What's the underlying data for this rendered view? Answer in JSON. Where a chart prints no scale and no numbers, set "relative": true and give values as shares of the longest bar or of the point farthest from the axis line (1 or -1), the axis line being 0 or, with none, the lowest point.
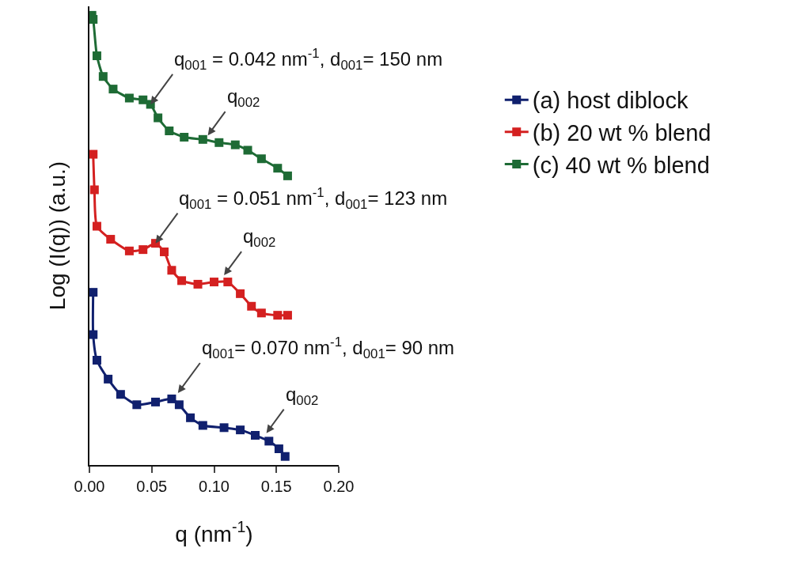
{
  "chart_data": {
    "type": "line",
    "relative": true,
    "xlabel": "q (nm$^{-1}$)",
    "ylabel": "Log (I(q)) (a.u.)",
    "xlim": [
      0,
      0.2
    ],
    "xticks": [
      {
        "value": 0,
        "label": "0.00"
      },
      {
        "value": 0.05,
        "label": "0.05"
      },
      {
        "value": 0.1,
        "label": "0.10"
      },
      {
        "value": 0.15,
        "label": "0.15"
      },
      {
        "value": 0.2,
        "label": "0.20"
      }
    ],
    "marker": "square",
    "line_style": "solid",
    "legend": "right",
    "grid": false,
    "series": [
      {
        "name": "(a) host diblock",
        "color": "#10206e",
        "x": [
          0.003,
          0.003,
          0.006,
          0.015,
          0.025,
          0.038,
          0.053,
          0.066,
          0.072,
          0.081,
          0.091,
          0.108,
          0.121,
          0.133,
          0.144,
          0.152,
          0.157
        ],
        "values": [
          0.384,
          0.29,
          0.233,
          0.191,
          0.157,
          0.134,
          0.14,
          0.147,
          0.134,
          0.105,
          0.088,
          0.083,
          0.078,
          0.066,
          0.053,
          0.036,
          0.019
        ]
      },
      {
        "name": "(b) 20 wt % blend",
        "color": "#d42020",
        "x": [
          0.003,
          0.004,
          0.006,
          0.017,
          0.032,
          0.043,
          0.053,
          0.06,
          0.066,
          0.074,
          0.087,
          0.1,
          0.111,
          0.121,
          0.13,
          0.138,
          0.151,
          0.159
        ],
        "values": [
          0.691,
          0.612,
          0.531,
          0.502,
          0.476,
          0.479,
          0.493,
          0.474,
          0.433,
          0.41,
          0.402,
          0.407,
          0.407,
          0.381,
          0.353,
          0.338,
          0.333,
          0.333
        ]
      },
      {
        "name": "(c) 40 wt % blend",
        "color": "#1e6b35",
        "x": [
          0.002,
          0.003,
          0.006,
          0.011,
          0.019,
          0.032,
          0.043,
          0.049,
          0.055,
          0.064,
          0.076,
          0.091,
          0.104,
          0.117,
          0.127,
          0.138,
          0.151,
          0.159
        ],
        "values": [
          1,
          0.991,
          0.91,
          0.864,
          0.836,
          0.816,
          0.812,
          0.802,
          0.772,
          0.743,
          0.729,
          0.724,
          0.717,
          0.712,
          0.7,
          0.681,
          0.66,
          0.643
        ]
      }
    ],
    "annotations": [
      {
        "text": "q$_{001}$ = 0.042 nm$^{-1}$, d$_{001}$= 150 nm",
        "x": 0.049,
        "y": 0.802
      },
      {
        "text": "q$_{002}$",
        "x": 0.095,
        "y": 0.733
      },
      {
        "text": "q$_{001}$ = 0.051 nm$^{-1}$, d$_{001}$= 123 nm",
        "x": 0.053,
        "y": 0.493
      },
      {
        "text": "q$_{002}$",
        "x": 0.108,
        "y": 0.422
      },
      {
        "text": "q$_{001}$= 0.070 nm$^{-1}$, d$_{001}$= 90 nm",
        "x": 0.071,
        "y": 0.16
      },
      {
        "text": "q$_{002}$",
        "x": 0.142,
        "y": 0.071
      }
    ]
  }
}
